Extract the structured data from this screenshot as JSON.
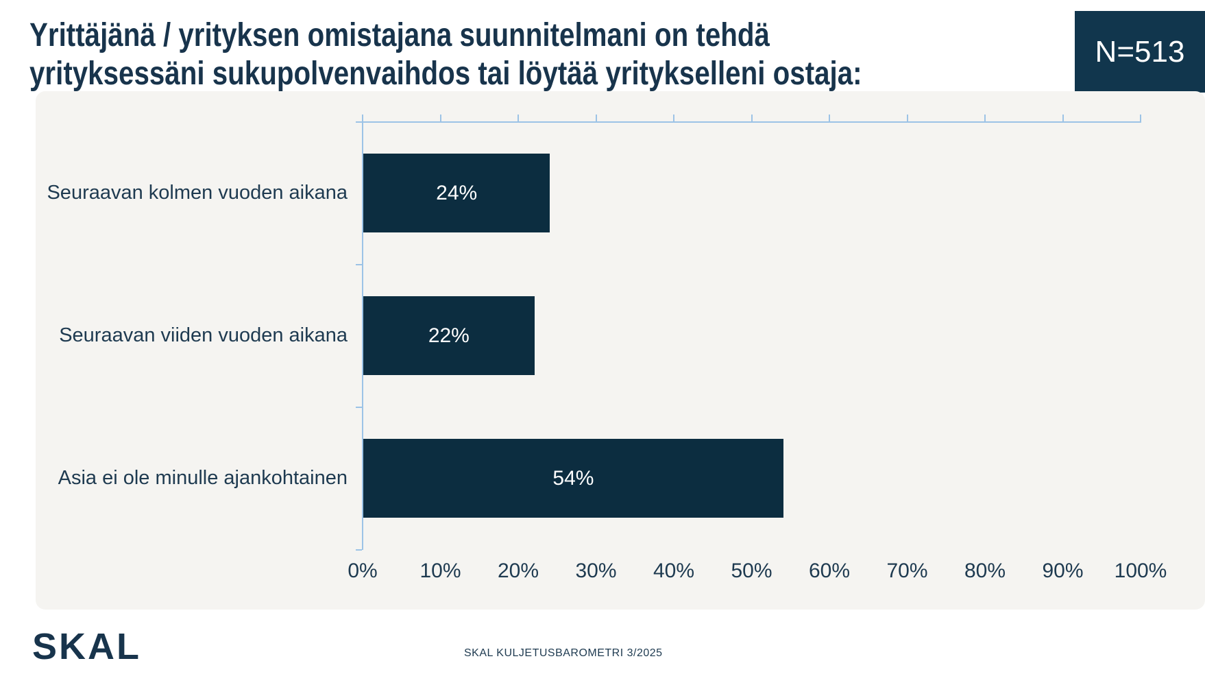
{
  "title": {
    "line1": "Yrittäjänä / yrityksen omistajana suunnitelmani on tehdä",
    "line2": "yrityksessäni sukupolvenvaihdos tai löytää yritykselleni ostaja:"
  },
  "badge": {
    "label": "N=513"
  },
  "footer": {
    "logo_text": "SKAL",
    "source": "SKAL KULJETUSBAROMETRI 3/2025"
  },
  "colors": {
    "bar": "#0c2d40",
    "badge_bg": "#11364d",
    "axis": "#9cc3e6",
    "panel_bg": "#f5f4f1",
    "title_text": "#18344c",
    "text": "#1e3a50",
    "bar_label_text": "#ffffff",
    "page_bg": "#ffffff"
  },
  "chart_data": {
    "type": "bar",
    "orientation": "horizontal",
    "title": "Yrittäjänä / yrityksen omistajana suunnitelmani on tehdä yrityksessäni sukupolvenvaihdos tai löytää yritykselleni ostaja:",
    "n_label": "N=513",
    "categories": [
      "Seuraavan kolmen vuoden aikana",
      "Seuraavan viiden vuoden aikana",
      "Asia ei ole minulle ajankohtainen"
    ],
    "values": [
      24,
      22,
      54
    ],
    "value_labels": [
      "24%",
      "22%",
      "54%"
    ],
    "xlim": [
      0,
      100
    ],
    "x_tick_step": 10,
    "x_tick_labels": [
      "0%",
      "10%",
      "20%",
      "30%",
      "40%",
      "50%",
      "60%",
      "70%",
      "80%",
      "90%",
      "100%"
    ],
    "grid": false,
    "legend": null,
    "value_axis_position": "top-and-bottom-labels",
    "source_note": "SKAL KULJETUSBAROMETRI 3/2025"
  }
}
